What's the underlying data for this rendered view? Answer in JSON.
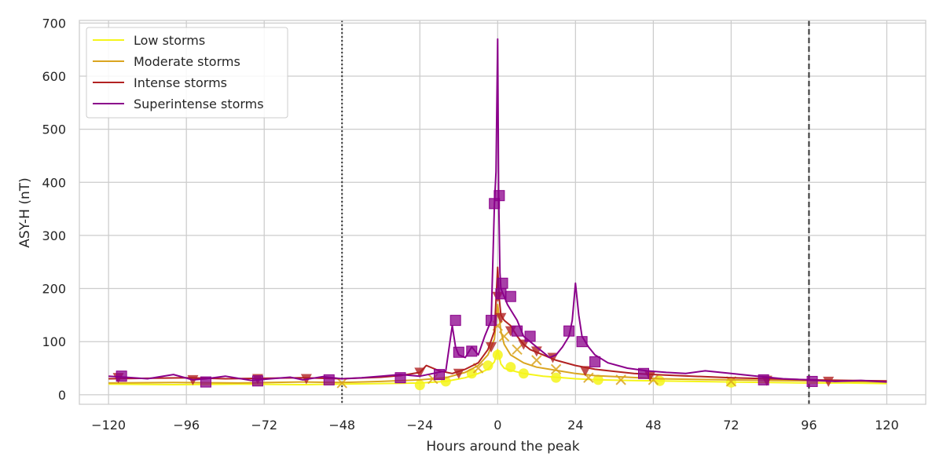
{
  "chart_data": {
    "type": "line",
    "title": "",
    "xlabel": "Hours around the peak",
    "ylabel": "ASY-H (nT)",
    "xlim": [
      -129,
      132
    ],
    "ylim": [
      -18,
      705
    ],
    "xticks": [
      -120,
      -96,
      -72,
      -48,
      -24,
      0,
      24,
      48,
      72,
      96,
      120
    ],
    "xtick_labels": [
      "−120",
      "−96",
      "−72",
      "−48",
      "−24",
      "0",
      "24",
      "48",
      "72",
      "96",
      "120"
    ],
    "yticks": [
      0,
      100,
      200,
      300,
      400,
      500,
      600,
      700
    ],
    "ytick_labels": [
      "0",
      "100",
      "200",
      "300",
      "400",
      "500",
      "600",
      "700"
    ],
    "grid": true,
    "legend_position": "top-left",
    "vlines": [
      {
        "x": -48,
        "style": "dotted",
        "color": "#333333"
      },
      {
        "x": 96,
        "style": "dashed",
        "color": "#333333"
      }
    ],
    "series": [
      {
        "name": "Low storms",
        "color": "#f5f51a",
        "marker": "circle",
        "x": [
          -120,
          -100,
          -80,
          -60,
          -48,
          -36,
          -24,
          -16,
          -10,
          -6,
          -3,
          -1,
          0,
          1,
          2,
          4,
          8,
          14,
          18,
          24,
          31,
          40,
          50,
          60,
          72,
          84,
          96,
          108,
          120
        ],
        "y": [
          20,
          19,
          20,
          19,
          20,
          21,
          22,
          25,
          32,
          40,
          48,
          62,
          85,
          58,
          50,
          46,
          40,
          35,
          33,
          30,
          28,
          27,
          26,
          25,
          24,
          23,
          22,
          22,
          21
        ],
        "markers_x": [
          -24,
          -16,
          -8,
          -3,
          0,
          4,
          8,
          18,
          31,
          50,
          72
        ],
        "markers_y": [
          18,
          25,
          40,
          55,
          75,
          52,
          40,
          32,
          28,
          26,
          23
        ]
      },
      {
        "name": "Moderate storms",
        "color": "#daa520",
        "marker": "x",
        "x": [
          -120,
          -100,
          -80,
          -60,
          -48,
          -36,
          -24,
          -16,
          -10,
          -6,
          -3,
          -1,
          0,
          1,
          2,
          4,
          8,
          12,
          16,
          20,
          24,
          30,
          40,
          50,
          60,
          72,
          84,
          96,
          108,
          120
        ],
        "y": [
          22,
          23,
          22,
          24,
          23,
          25,
          28,
          32,
          42,
          55,
          75,
          105,
          170,
          120,
          95,
          75,
          60,
          52,
          48,
          44,
          40,
          36,
          33,
          30,
          29,
          28,
          27,
          26,
          25,
          24
        ],
        "markers_x": [
          -48,
          -20,
          -6,
          0,
          2,
          6,
          12,
          18,
          28,
          38,
          48,
          72
        ],
        "markers_y": [
          22,
          30,
          50,
          130,
          110,
          85,
          65,
          48,
          32,
          28,
          28,
          25
        ]
      },
      {
        "name": "Intense storms",
        "color": "#b22222",
        "marker": "triangle-down",
        "x": [
          -120,
          -108,
          -96,
          -84,
          -72,
          -60,
          -48,
          -36,
          -30,
          -24,
          -22,
          -18,
          -14,
          -10,
          -6,
          -3,
          -1,
          0,
          0.5,
          1,
          2,
          4,
          6,
          8,
          10,
          14,
          18,
          24,
          30,
          36,
          42,
          48,
          60,
          72,
          84,
          96,
          108,
          120
        ],
        "y": [
          30,
          31,
          32,
          30,
          31,
          32,
          30,
          33,
          36,
          42,
          55,
          45,
          40,
          48,
          60,
          85,
          120,
          240,
          180,
          150,
          140,
          130,
          110,
          95,
          85,
          75,
          65,
          55,
          48,
          44,
          40,
          38,
          35,
          32,
          30,
          28,
          27,
          26
        ],
        "markers_x": [
          -117,
          -94,
          -74,
          -59,
          -24,
          -12,
          -2,
          0,
          1,
          4,
          8,
          12,
          17,
          27,
          47,
          83,
          102
        ],
        "markers_y": [
          32,
          28,
          30,
          30,
          42,
          40,
          90,
          185,
          145,
          120,
          95,
          82,
          70,
          45,
          35,
          27,
          25
        ]
      },
      {
        "name": "Superintense storms",
        "color": "#8b008b",
        "marker": "square",
        "x": [
          -120,
          -115,
          -108,
          -100,
          -94,
          -90,
          -84,
          -76,
          -70,
          -64,
          -60,
          -54,
          -48,
          -42,
          -36,
          -30,
          -24,
          -20,
          -16,
          -14,
          -13,
          -12,
          -10,
          -8,
          -6,
          -4,
          -2,
          -1,
          -0.5,
          0,
          0.3,
          0.7,
          1,
          2,
          3,
          4,
          6,
          8,
          10,
          12,
          14,
          16,
          18,
          20,
          22,
          23,
          24,
          25,
          26,
          28,
          30,
          34,
          40,
          46,
          52,
          58,
          64,
          72,
          80,
          88,
          96,
          104,
          112,
          120
        ],
        "y": [
          35,
          33,
          30,
          38,
          28,
          30,
          35,
          27,
          30,
          33,
          28,
          34,
          30,
          32,
          35,
          38,
          35,
          40,
          45,
          130,
          90,
          75,
          70,
          90,
          75,
          110,
          140,
          360,
          420,
          670,
          380,
          230,
          200,
          185,
          170,
          160,
          140,
          110,
          100,
          90,
          80,
          70,
          75,
          90,
          110,
          140,
          210,
          150,
          110,
          90,
          75,
          60,
          50,
          45,
          42,
          40,
          45,
          40,
          35,
          30,
          28,
          25,
          27,
          24
        ],
        "markers_x": [
          -116,
          -90,
          -74,
          -52,
          -30,
          -18,
          -13,
          -12,
          -8,
          -2,
          -1,
          0.5,
          1,
          1.5,
          4,
          6,
          10,
          22,
          26,
          30,
          45,
          82,
          97
        ],
        "markers_y": [
          35,
          24,
          26,
          28,
          32,
          38,
          140,
          80,
          82,
          140,
          360,
          375,
          190,
          210,
          185,
          120,
          110,
          120,
          100,
          62,
          40,
          28,
          25
        ]
      }
    ]
  }
}
